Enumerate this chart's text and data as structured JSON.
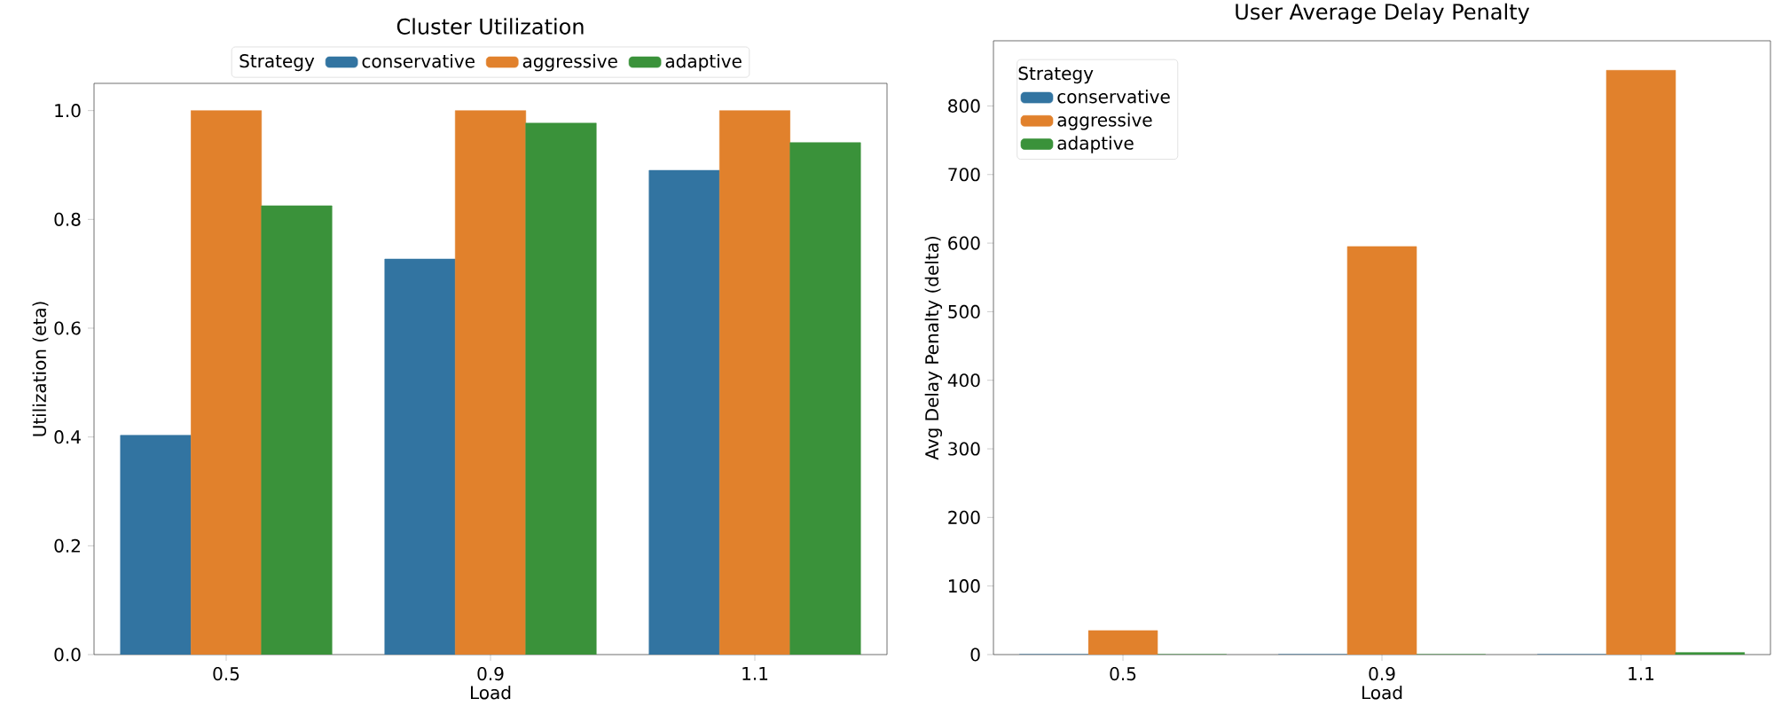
{
  "chart_data": [
    {
      "type": "bar",
      "title": "Cluster Utilization",
      "xlabel": "Load",
      "ylabel": "Utilization (eta)",
      "legend_title": "Strategy",
      "legend": "top",
      "categories": [
        "0.5",
        "0.9",
        "1.1"
      ],
      "series": [
        {
          "name": "conservative",
          "color": "#3274a1",
          "values": [
            0.403,
            0.727,
            0.89
          ]
        },
        {
          "name": "aggressive",
          "color": "#e1812c",
          "values": [
            1.0,
            1.0,
            1.0
          ]
        },
        {
          "name": "adaptive",
          "color": "#3a923a",
          "values": [
            0.825,
            0.977,
            0.941
          ]
        }
      ],
      "ylim": [
        0,
        1.05
      ],
      "yticks": [
        {
          "value": 0,
          "label": "0.0"
        },
        {
          "value": 0.2,
          "label": "0.2"
        },
        {
          "value": 0.4,
          "label": "0.4"
        },
        {
          "value": 0.6,
          "label": "0.6"
        },
        {
          "value": 0.8,
          "label": "0.8"
        },
        {
          "value": 1.0,
          "label": "1.0"
        }
      ]
    },
    {
      "type": "bar",
      "title": "User Average Delay Penalty",
      "xlabel": "Load",
      "ylabel": "Avg Delay Penalty (delta)",
      "legend_title": "Strategy",
      "legend": "top left",
      "categories": [
        "0.5",
        "0.9",
        "1.1"
      ],
      "series": [
        {
          "name": "conservative",
          "color": "#3274a1",
          "values": [
            0,
            0,
            0
          ]
        },
        {
          "name": "aggressive",
          "color": "#e1812c",
          "values": [
            35,
            595,
            852
          ]
        },
        {
          "name": "adaptive",
          "color": "#3a923a",
          "values": [
            0,
            0,
            3
          ]
        }
      ],
      "ylim": [
        0,
        895
      ],
      "yticks": [
        0,
        100,
        200,
        300,
        400,
        500,
        600,
        700,
        800
      ]
    }
  ]
}
